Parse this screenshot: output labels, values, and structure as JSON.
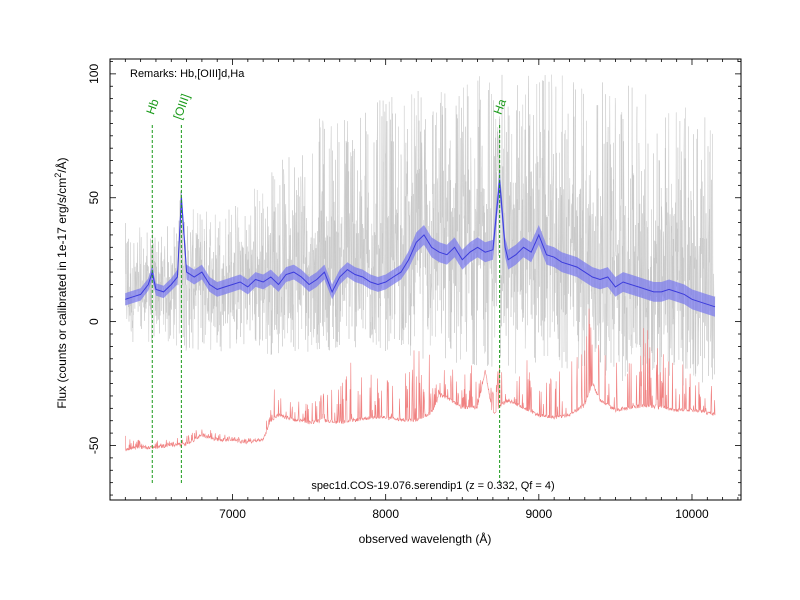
{
  "chart_data": {
    "type": "line",
    "title": "",
    "xlabel": "observed wavelength (Å)",
    "ylabel": "Flux (counts or calibrated in 1e-17 erg/s/cm²/Å)",
    "xlim": [
      6200,
      10320
    ],
    "ylim": [
      -72,
      106
    ],
    "xticks": [
      7000,
      8000,
      9000,
      10000
    ],
    "yticks": [
      -50,
      0,
      50,
      100
    ],
    "grid": false,
    "remarks": "Remarks: Hb,[OIII]d,Ha",
    "caption": "spec1d.COS-19.076.serendip1 (z = 0.332, Qf = 4)",
    "colors": {
      "raw": "#c8c8c8",
      "smoothed": "#3c3cdc",
      "smoothed_band": "#7878ee",
      "noise": "#f08080",
      "lines": "#1a9a1a"
    },
    "emission_lines": [
      {
        "name": "Hb",
        "wavelength": 6476
      },
      {
        "name": "[OIII]",
        "wavelength": 6666
      },
      {
        "name": "Ha",
        "wavelength": 8744
      }
    ],
    "series": [
      {
        "role": "smoothed",
        "x": [
          6300,
          6350,
          6400,
          6450,
          6476,
          6500,
          6550,
          6600,
          6640,
          6666,
          6700,
          6750,
          6800,
          6850,
          6900,
          6950,
          7000,
          7050,
          7100,
          7150,
          7200,
          7250,
          7300,
          7350,
          7400,
          7450,
          7500,
          7550,
          7600,
          7650,
          7700,
          7750,
          7800,
          7850,
          7900,
          7950,
          8000,
          8050,
          8100,
          8150,
          8200,
          8250,
          8300,
          8350,
          8400,
          8450,
          8500,
          8550,
          8600,
          8650,
          8700,
          8744,
          8780,
          8800,
          8850,
          8900,
          8950,
          9000,
          9050,
          9100,
          9150,
          9200,
          9250,
          9300,
          9350,
          9400,
          9450,
          9500,
          9550,
          9600,
          9650,
          9700,
          9750,
          9800,
          9850,
          9900,
          9950,
          10000,
          10050,
          10100,
          10150
        ],
        "y": [
          9,
          10,
          11,
          15,
          20,
          13,
          12,
          15,
          18,
          50,
          20,
          18,
          20,
          15,
          13,
          14,
          15,
          16,
          14,
          17,
          16,
          18,
          15,
          19,
          20,
          18,
          15,
          17,
          20,
          12,
          18,
          21,
          19,
          18,
          16,
          15,
          16,
          18,
          20,
          25,
          32,
          35,
          30,
          28,
          27,
          30,
          25,
          28,
          30,
          28,
          29,
          57,
          30,
          25,
          27,
          30,
          28,
          35,
          27,
          26,
          24,
          23,
          22,
          20,
          18,
          17,
          18,
          14,
          16,
          15,
          14,
          13,
          12,
          12,
          13,
          12,
          11,
          9,
          8,
          7,
          6
        ],
        "band": [
          2.5,
          2.5,
          2.5,
          2.5,
          3,
          2.5,
          2.5,
          2.5,
          3,
          4,
          3,
          3,
          3,
          3,
          3,
          3,
          3,
          3,
          3,
          3,
          3,
          3,
          3,
          3,
          3,
          3,
          3,
          3,
          3,
          3,
          3,
          3,
          3,
          3,
          3,
          3,
          3,
          3,
          3,
          3.5,
          4,
          4,
          4,
          4,
          4,
          4,
          4,
          4,
          4,
          4,
          4,
          5,
          4,
          4,
          4,
          4,
          4,
          4,
          4,
          4,
          4,
          4,
          4,
          4,
          4,
          4,
          4,
          4,
          4,
          4,
          4,
          4,
          4,
          4,
          4,
          4,
          4,
          4,
          4,
          4,
          4
        ]
      },
      {
        "role": "noise",
        "x": [
          6300,
          6400,
          6500,
          6600,
          6700,
          6800,
          6900,
          7000,
          7100,
          7200,
          7250,
          7300,
          7400,
          7500,
          7600,
          7700,
          7800,
          7900,
          8000,
          8100,
          8200,
          8300,
          8350,
          8400,
          8500,
          8600,
          8650,
          8700,
          8750,
          8800,
          8900,
          9000,
          9100,
          9200,
          9300,
          9350,
          9400,
          9500,
          9600,
          9700,
          9800,
          9900,
          10000,
          10100,
          10150
        ],
        "y": [
          -52,
          -51,
          -51,
          -50,
          -50,
          -46,
          -48,
          -48,
          -49,
          -48,
          -40,
          -38,
          -40,
          -41,
          -40,
          -41,
          -40,
          -39,
          -39,
          -40,
          -40,
          -37,
          -30,
          -31,
          -35,
          -35,
          -20,
          -38,
          -34,
          -32,
          -35,
          -38,
          -39,
          -38,
          -34,
          -25,
          -32,
          -36,
          -35,
          -34,
          -35,
          -36,
          -36,
          -37,
          -38
        ],
        "spike_top": [
          -46,
          -48,
          -48,
          -47,
          -46,
          -42,
          -45,
          -46,
          -47,
          -47,
          -30,
          -22,
          -28,
          -33,
          -28,
          -26,
          -12,
          -20,
          -22,
          -26,
          -8,
          -14,
          -20,
          -18,
          -14,
          -20,
          -20,
          -28,
          -10,
          -10,
          -12,
          -26,
          -20,
          -18,
          5,
          10,
          -5,
          -12,
          -15,
          0,
          -10,
          -15,
          -20,
          -22,
          -25
        ]
      }
    ],
    "raw_envelope": {
      "x": [
        6300,
        6500,
        6700,
        7000,
        7300,
        7600,
        8000,
        8300,
        8600,
        8800,
        9000,
        9300,
        9600,
        9900,
        10150
      ],
      "low": [
        -8,
        -10,
        -12,
        -12,
        -14,
        -12,
        -12,
        -16,
        -18,
        -22,
        -20,
        -24,
        -26,
        -26,
        -28
      ],
      "high": [
        40,
        36,
        45,
        48,
        65,
        85,
        90,
        95,
        100,
        100,
        100,
        100,
        95,
        90,
        80
      ]
    }
  }
}
